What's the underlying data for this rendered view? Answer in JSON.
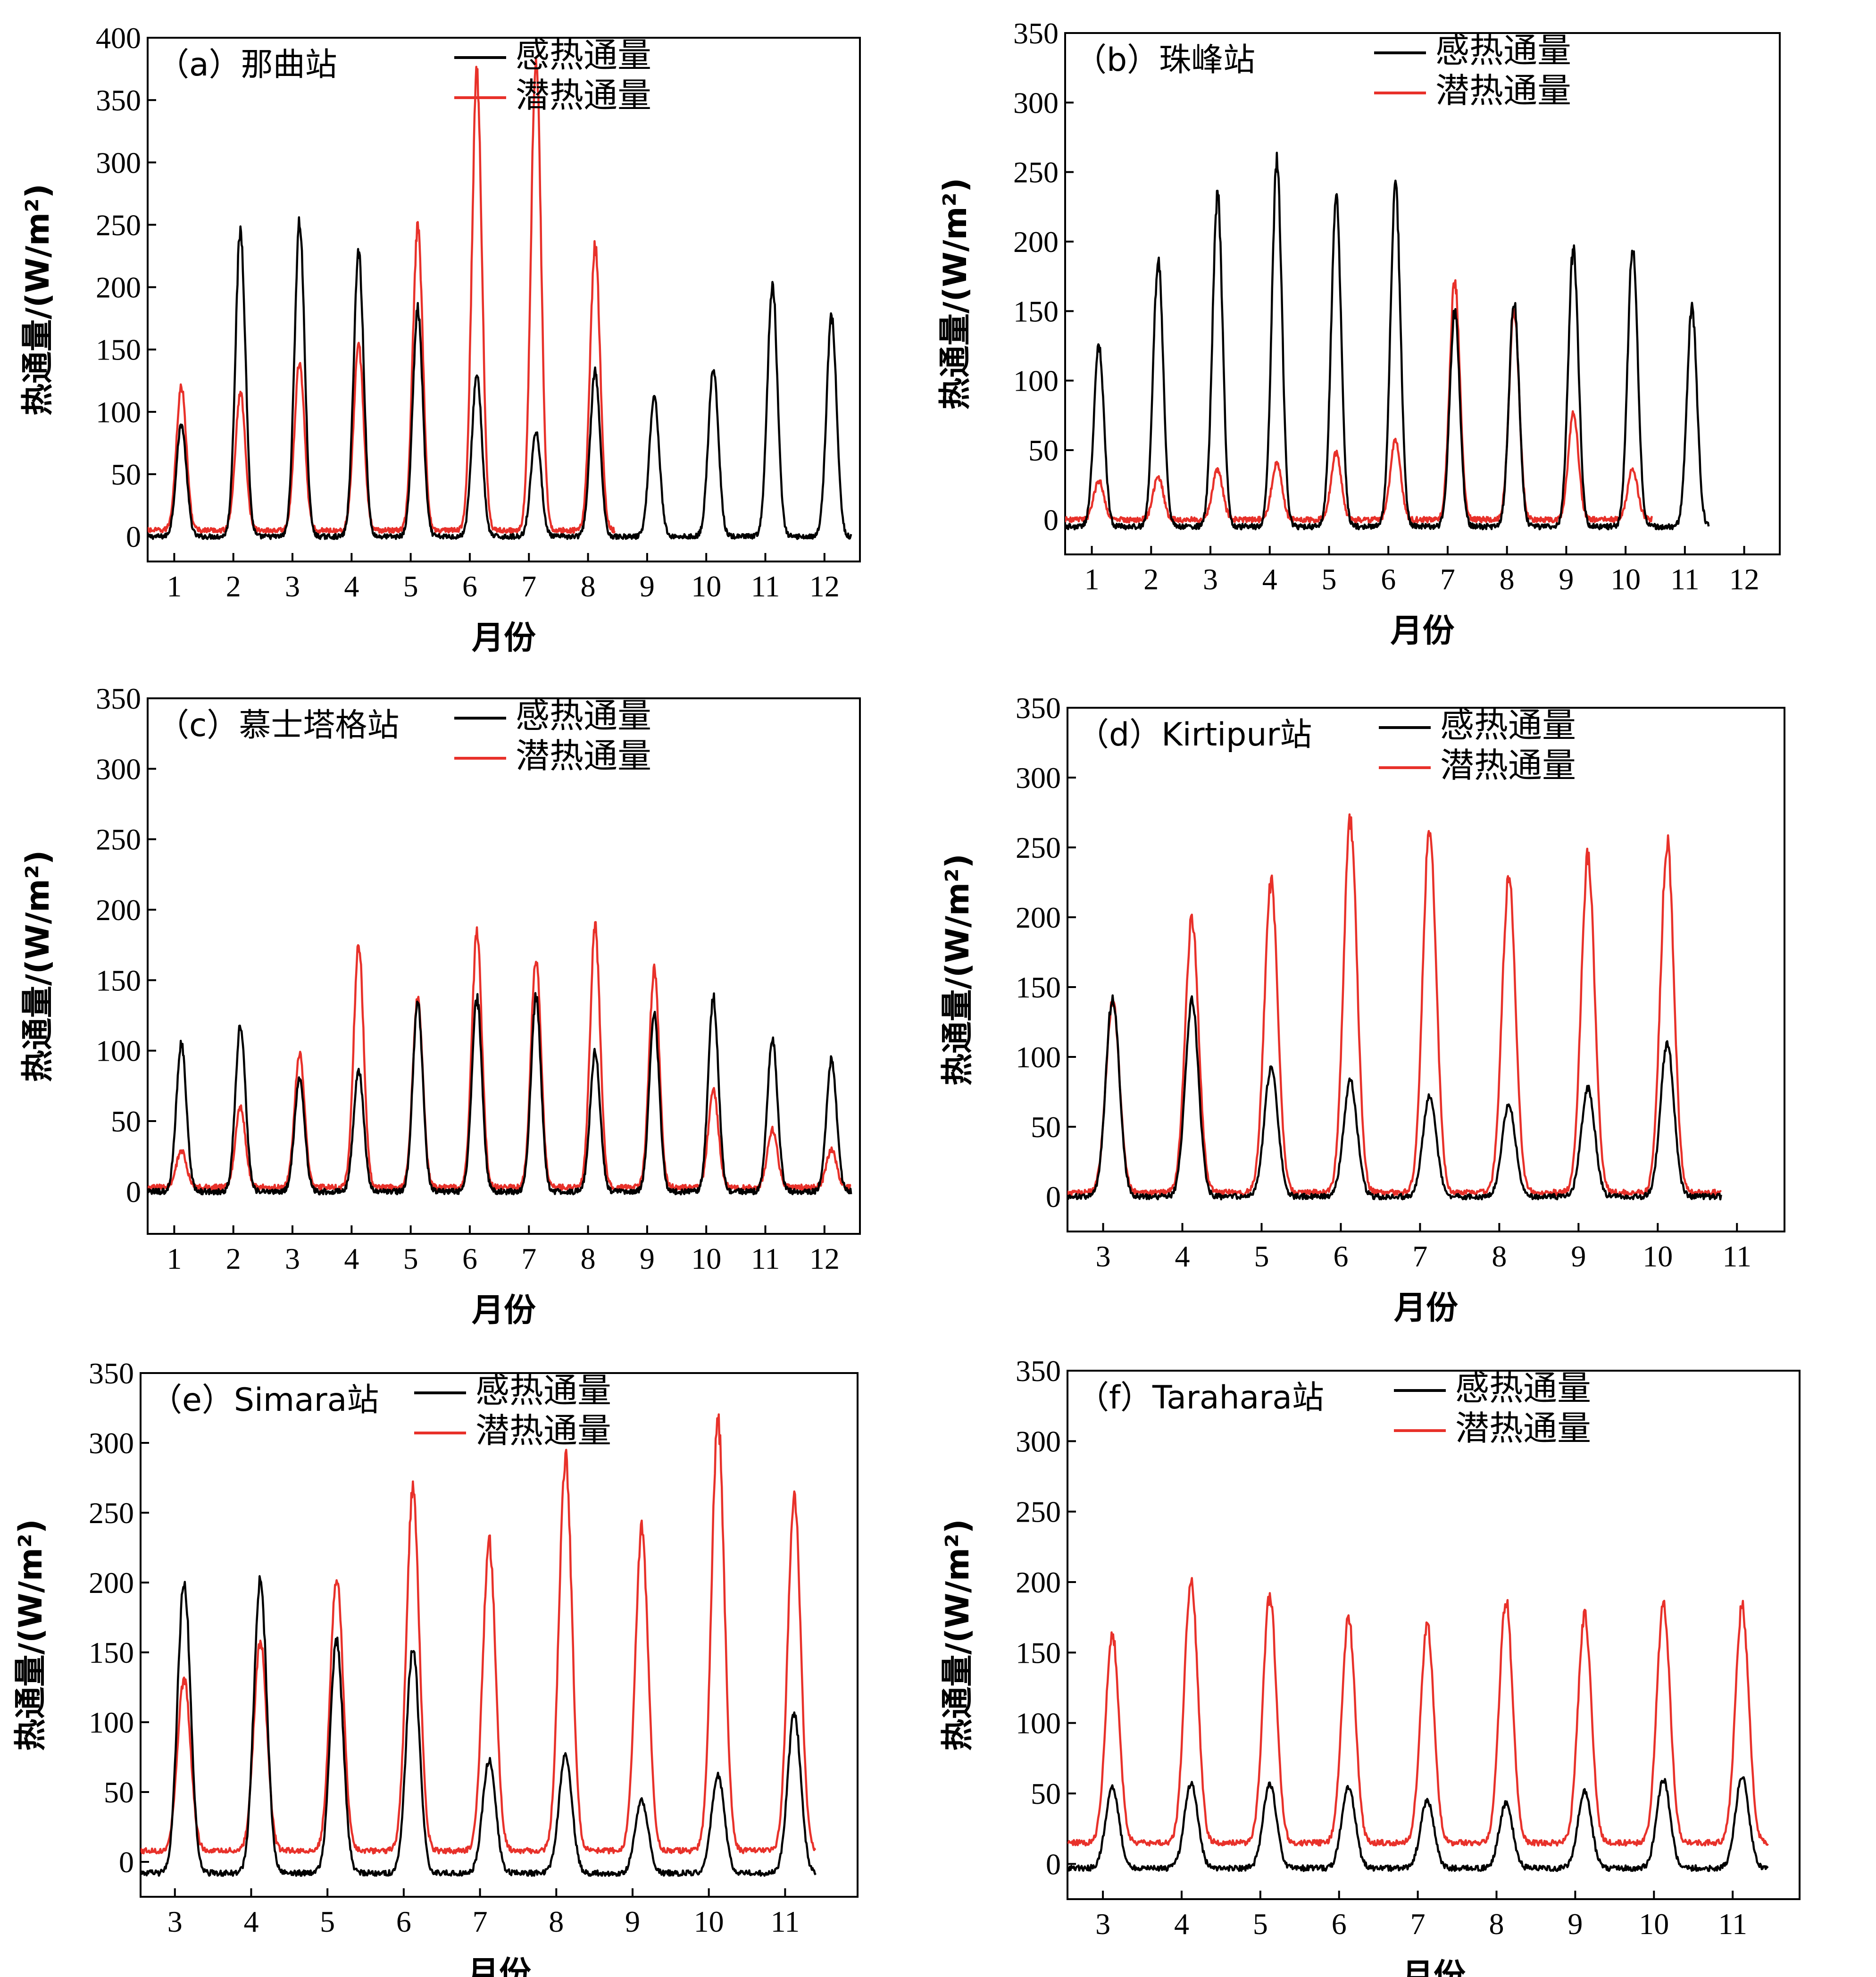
{
  "colors": {
    "sensible": "#000000",
    "latent": "#e8312a"
  },
  "chart_data": [
    {
      "type": "line",
      "title": "（a）那曲站",
      "xlabel": "月份",
      "ylabel": "热通量/(W/m²)",
      "xlim": [
        0.55,
        12.6
      ],
      "ylim": [
        -20,
        400
      ],
      "xticks": [
        1,
        2,
        3,
        4,
        5,
        6,
        7,
        8,
        9,
        10,
        11,
        12
      ],
      "yticks": [
        0,
        50,
        100,
        150,
        200,
        250,
        300,
        350,
        400
      ],
      "x_months": [
        1,
        2,
        3,
        4,
        5,
        6,
        7,
        8,
        9,
        10,
        11,
        12
      ],
      "series": [
        {
          "name": "感热通量",
          "color": "#000000",
          "x_start": 0.55,
          "x_end": 12.45,
          "base": 0,
          "peaks": [
            90,
            245,
            252,
            228,
            182,
            130,
            84,
            132,
            112,
            134,
            202,
            177
          ]
        },
        {
          "name": "潜热通量",
          "color": "#e8312a",
          "x_start": 0.55,
          "x_end": 8.45,
          "base": 5,
          "peaks": [
            120,
            115,
            140,
            152,
            248,
            373,
            385,
            232,
            null,
            null,
            null,
            null
          ]
        }
      ]
    },
    {
      "type": "line",
      "title": "（b）珠峰站",
      "xlabel": "月份",
      "ylabel": "热通量/(W/m²)",
      "xlim": [
        0.55,
        12.6
      ],
      "ylim": [
        -25,
        350
      ],
      "xticks": [
        1,
        2,
        3,
        4,
        5,
        6,
        7,
        8,
        9,
        10,
        11,
        12
      ],
      "yticks": [
        0,
        50,
        100,
        150,
        200,
        250,
        300,
        350
      ],
      "x_months": [
        1,
        2,
        3,
        4,
        5,
        6,
        7,
        8,
        9,
        10,
        11
      ],
      "series": [
        {
          "name": "感热通量",
          "color": "#000000",
          "x_start": 0.55,
          "x_end": 11.4,
          "base": -5,
          "peaks": [
            125,
            186,
            233,
            257,
            230,
            240,
            150,
            156,
            195,
            196,
            152,
            null
          ]
        },
        {
          "name": "潜热通量",
          "color": "#e8312a",
          "x_start": 0.55,
          "x_end": 10.45,
          "base": 0,
          "peaks": [
            28,
            31,
            36,
            41,
            48,
            58,
            172,
            150,
            77,
            36,
            null,
            null
          ]
        }
      ]
    },
    {
      "type": "line",
      "title": "（c）慕士塔格站",
      "xlabel": "月份",
      "ylabel": "热通量/(W/m²)",
      "xlim": [
        0.55,
        12.6
      ],
      "ylim": [
        -30,
        350
      ],
      "xticks": [
        1,
        2,
        3,
        4,
        5,
        6,
        7,
        8,
        9,
        10,
        11,
        12
      ],
      "yticks": [
        0,
        50,
        100,
        150,
        200,
        250,
        300,
        350
      ],
      "x_months": [
        1,
        2,
        3,
        4,
        5,
        6,
        7,
        8,
        9,
        10,
        11,
        12
      ],
      "series": [
        {
          "name": "感热通量",
          "color": "#000000",
          "x_start": 0.55,
          "x_end": 12.45,
          "base": 0,
          "peaks": [
            105,
            118,
            80,
            86,
            134,
            137,
            138,
            99,
            125,
            138,
            109,
            94
          ]
        },
        {
          "name": "潜热通量",
          "color": "#e8312a",
          "x_start": 0.55,
          "x_end": 12.45,
          "base": 3,
          "peaks": [
            29,
            60,
            98,
            175,
            138,
            183,
            166,
            187,
            158,
            72,
            44,
            30
          ]
        }
      ]
    },
    {
      "type": "line",
      "title": "（d）Kirtipur站",
      "xlabel": "月份",
      "ylabel": "热通量/(W/m²)",
      "xlim": [
        2.55,
        11.6
      ],
      "ylim": [
        -25,
        350
      ],
      "xticks": [
        3,
        4,
        5,
        6,
        7,
        8,
        9,
        10,
        11
      ],
      "yticks": [
        0,
        50,
        100,
        150,
        200,
        250,
        300,
        350
      ],
      "x_months": [
        3,
        4,
        5,
        6,
        7,
        8,
        9,
        10
      ],
      "series": [
        {
          "name": "感热通量",
          "color": "#000000",
          "x_start": 2.55,
          "x_end": 10.8,
          "base": 0,
          "peaks": [
            143,
            140,
            92,
            83,
            72,
            66,
            78,
            110
          ]
        },
        {
          "name": "潜热通量",
          "color": "#e8312a",
          "x_start": 2.55,
          "x_end": 10.8,
          "base": 3,
          "peaks": [
            140,
            198,
            225,
            268,
            265,
            228,
            244,
            254
          ]
        }
      ]
    },
    {
      "type": "line",
      "title": "（e）Simara站",
      "xlabel": "月份",
      "ylabel": "热通量/(W/m²)",
      "xlim": [
        2.55,
        11.95
      ],
      "ylim": [
        -25,
        350
      ],
      "xticks": [
        3,
        4,
        5,
        6,
        7,
        8,
        9,
        10,
        11
      ],
      "yticks": [
        0,
        50,
        100,
        150,
        200,
        250,
        300,
        350
      ],
      "x_months": [
        3,
        4,
        5,
        6,
        7,
        8,
        9,
        10,
        11
      ],
      "series": [
        {
          "name": "感热通量",
          "color": "#000000",
          "x_start": 2.55,
          "x_end": 11.4,
          "base": -8,
          "peaks": [
            201,
            200,
            158,
            153,
            73,
            76,
            44,
            62,
            106
          ]
        },
        {
          "name": "潜热通量",
          "color": "#e8312a",
          "x_start": 2.55,
          "x_end": 11.4,
          "base": 8,
          "peaks": [
            131,
            158,
            205,
            265,
            229,
            290,
            238,
            316,
            260
          ]
        }
      ]
    },
    {
      "type": "line",
      "title": "（f）Tarahara站",
      "xlabel": "月份",
      "ylabel": "热通量/(W/m²)",
      "xlim": [
        2.55,
        11.85
      ],
      "ylim": [
        -25,
        350
      ],
      "xticks": [
        3,
        4,
        5,
        6,
        7,
        8,
        9,
        10,
        11
      ],
      "yticks": [
        0,
        50,
        100,
        150,
        200,
        250,
        300,
        350
      ],
      "x_months": [
        3,
        4,
        5,
        6,
        7,
        8,
        9,
        10,
        11
      ],
      "series": [
        {
          "name": "感热通量",
          "color": "#000000",
          "x_start": 2.55,
          "x_end": 11.45,
          "base": -3,
          "peaks": [
            55,
            57,
            57,
            55,
            45,
            43,
            52,
            60,
            62
          ]
        },
        {
          "name": "潜热通量",
          "color": "#e8312a",
          "x_start": 2.55,
          "x_end": 11.45,
          "base": 15,
          "peaks": [
            163,
            202,
            190,
            174,
            170,
            187,
            177,
            185,
            183
          ]
        }
      ]
    }
  ]
}
